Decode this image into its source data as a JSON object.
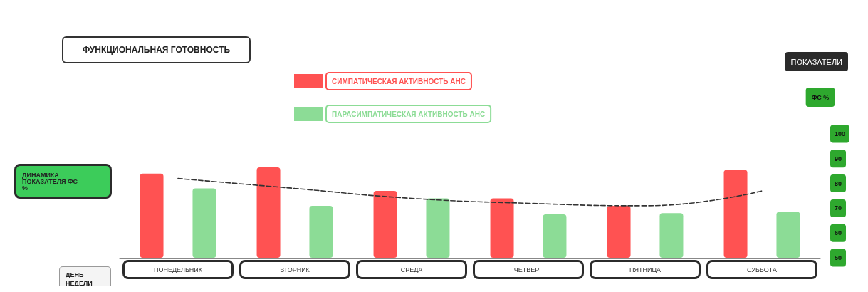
{
  "chart_data": {
    "type": "bar",
    "title": "ФУНКЦИОНАЛЬНАЯ ГОТОВНОСТЬ",
    "xlabel": "ДЕНЬ НЕДЕЛИ",
    "ylabel": "ФС %",
    "categories": [
      "ПОНЕДЕЛЬНИК",
      "ВТОРНИК",
      "СРЕДА",
      "ЧЕТВЕРГ",
      "ПЯТНИЦА",
      "СУББОТА"
    ],
    "series": [
      {
        "name": "СИМПАТИЧЕСКАЯ АКТИВНОСТЬ АНС",
        "color": "#ff5252",
        "values": [
          84,
          86.5,
          77,
          74,
          71,
          85.5
        ]
      },
      {
        "name": "ПАРАСИМПАТИЧЕСКАЯ АКТИВНОСТЬ АНС",
        "color": "#8cdc96",
        "values": [
          78,
          71,
          74,
          67.5,
          68,
          68.5
        ]
      },
      {
        "name": "ДИНАМИКА ПОКАЗАТЕЛЯ ФС %",
        "type": "line",
        "color": "#333333",
        "line_style": "dashed",
        "marker": "none",
        "values": [
          82,
          78,
          74,
          72,
          71,
          77
        ]
      }
    ],
    "ylim": [
      50,
      100
    ],
    "yticks": [
      50,
      60,
      70,
      80,
      90,
      100
    ],
    "legend": "top",
    "grid": false,
    "annotations": [
      "ПОКАЗАТЕЛИ"
    ]
  }
}
